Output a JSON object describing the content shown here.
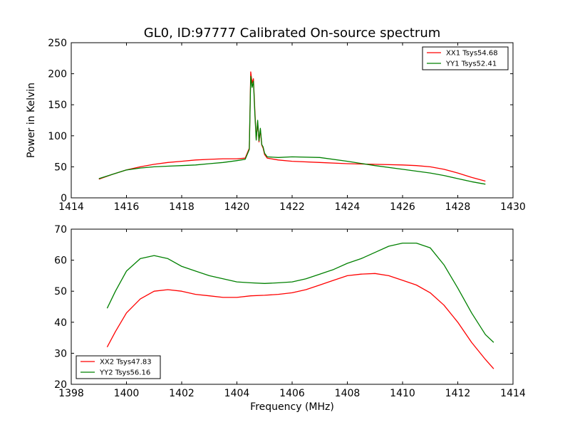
{
  "figure": {
    "title": "GL0, ID:97777 Calibrated On-source spectrum"
  },
  "chart_data": [
    {
      "type": "line",
      "title": "GL0, ID:97777 Calibrated On-source spectrum",
      "xlabel": "",
      "ylabel": "Power in Kelvin",
      "xlim": [
        1414,
        1430
      ],
      "ylim": [
        0,
        250
      ],
      "xticks": [
        "1414",
        "1416",
        "1418",
        "1420",
        "1422",
        "1424",
        "1426",
        "1428",
        "1430"
      ],
      "yticks": [
        "0",
        "50",
        "100",
        "150",
        "200",
        "250"
      ],
      "grid": false,
      "legend_position": "top-right",
      "series": [
        {
          "name": "XX1 Tsys54.68",
          "color": "#ff0000",
          "x": [
            1415.0,
            1415.5,
            1416.0,
            1416.5,
            1417.0,
            1417.5,
            1418.0,
            1418.5,
            1419.0,
            1419.5,
            1420.0,
            1420.3,
            1420.45,
            1420.5,
            1420.55,
            1420.6,
            1420.65,
            1420.7,
            1420.75,
            1420.8,
            1420.85,
            1420.9,
            1420.95,
            1421.0,
            1421.1,
            1421.5,
            1422.0,
            1423.0,
            1424.0,
            1425.0,
            1426.0,
            1426.5,
            1427.0,
            1427.5,
            1428.0,
            1428.5,
            1429.0
          ],
          "y": [
            30,
            38,
            45,
            50,
            54,
            57,
            59,
            61,
            62,
            63,
            63,
            64,
            80,
            203,
            185,
            192,
            140,
            95,
            122,
            90,
            110,
            85,
            80,
            70,
            64,
            61,
            59,
            57,
            55,
            54,
            53,
            52,
            50,
            46,
            40,
            33,
            27
          ]
        },
        {
          "name": "YY1 Tsys52.41",
          "color": "#008000",
          "x": [
            1415.0,
            1415.5,
            1416.0,
            1416.5,
            1417.0,
            1417.5,
            1418.0,
            1418.5,
            1419.0,
            1419.5,
            1420.0,
            1420.3,
            1420.45,
            1420.5,
            1420.55,
            1420.6,
            1420.65,
            1420.7,
            1420.75,
            1420.8,
            1420.85,
            1420.9,
            1420.95,
            1421.0,
            1421.1,
            1421.5,
            1422.0,
            1423.0,
            1424.0,
            1425.0,
            1426.0,
            1426.5,
            1427.0,
            1427.5,
            1428.0,
            1428.5,
            1429.0
          ],
          "y": [
            31,
            38,
            45,
            48,
            50,
            51,
            52,
            53,
            55,
            57,
            60,
            62,
            78,
            196,
            178,
            188,
            135,
            93,
            125,
            92,
            112,
            86,
            82,
            72,
            66,
            65,
            66,
            65,
            59,
            52,
            46,
            43,
            40,
            36,
            31,
            26,
            22
          ]
        }
      ]
    },
    {
      "type": "line",
      "title": "",
      "xlabel": "Frequency (MHz)",
      "ylabel": "",
      "xlim": [
        1398,
        1414
      ],
      "ylim": [
        20,
        70
      ],
      "xticks": [
        "1398",
        "1400",
        "1402",
        "1404",
        "1406",
        "1408",
        "1410",
        "1412",
        "1414"
      ],
      "yticks": [
        "20",
        "30",
        "40",
        "50",
        "60",
        "70"
      ],
      "grid": false,
      "legend_position": "bottom-left",
      "series": [
        {
          "name": "XX2 Tsys47.83",
          "color": "#ff0000",
          "x": [
            1399.3,
            1399.6,
            1400.0,
            1400.5,
            1401.0,
            1401.5,
            1402.0,
            1402.5,
            1403.0,
            1403.5,
            1404.0,
            1404.5,
            1405.0,
            1405.5,
            1406.0,
            1406.5,
            1407.0,
            1407.5,
            1408.0,
            1408.5,
            1409.0,
            1409.5,
            1410.0,
            1410.5,
            1411.0,
            1411.5,
            1412.0,
            1412.5,
            1413.0,
            1413.3
          ],
          "y": [
            32,
            37,
            43,
            47.5,
            50,
            50.5,
            50,
            49,
            48.5,
            48,
            48,
            48.5,
            48.7,
            49,
            49.5,
            50.5,
            52,
            53.5,
            55,
            55.5,
            55.7,
            55,
            53.5,
            52,
            49.5,
            45.5,
            40,
            33.5,
            28,
            25
          ]
        },
        {
          "name": "YY2 Tsys56.16",
          "color": "#008000",
          "x": [
            1399.3,
            1399.6,
            1400.0,
            1400.5,
            1401.0,
            1401.5,
            1402.0,
            1402.5,
            1403.0,
            1403.5,
            1404.0,
            1404.5,
            1405.0,
            1405.5,
            1406.0,
            1406.5,
            1407.0,
            1407.5,
            1408.0,
            1408.5,
            1409.0,
            1409.5,
            1410.0,
            1410.5,
            1411.0,
            1411.5,
            1412.0,
            1412.5,
            1413.0,
            1413.3
          ],
          "y": [
            44.5,
            50,
            56.5,
            60.5,
            61.5,
            60.5,
            58,
            56.5,
            55,
            54,
            53,
            52.7,
            52.5,
            52.7,
            53,
            54,
            55.5,
            57,
            59,
            60.5,
            62.5,
            64.5,
            65.5,
            65.5,
            64,
            58.5,
            51,
            43,
            36,
            33.5
          ]
        }
      ]
    }
  ]
}
